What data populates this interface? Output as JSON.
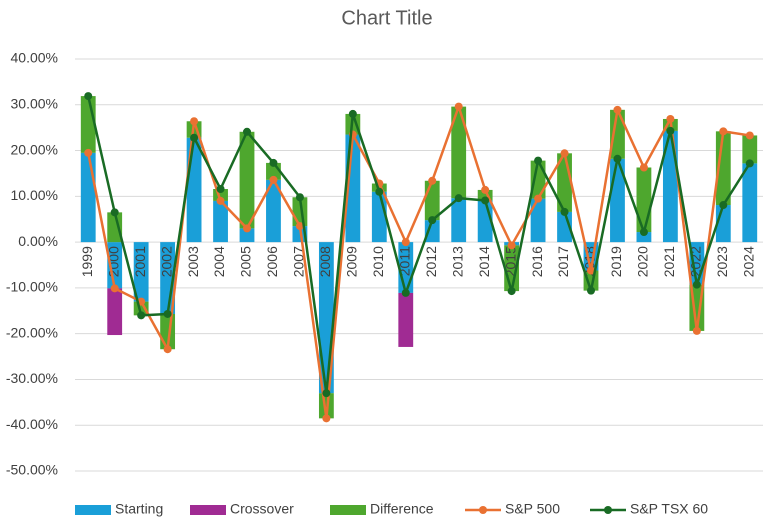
{
  "chart_data": {
    "type": "combo",
    "title": "Chart Title",
    "categories": [
      "1999",
      "2000",
      "2001",
      "2002",
      "2003",
      "2004",
      "2005",
      "2006",
      "2007",
      "2008",
      "2009",
      "2010",
      "2011",
      "2012",
      "2013",
      "2014",
      "2015",
      "2016",
      "2017",
      "2018",
      "2019",
      "2020",
      "2021",
      "2022",
      "2023",
      "2024"
    ],
    "series": [
      {
        "name": "Starting",
        "kind": "bar",
        "color": "#1a9fd8",
        "values": [
          19.5,
          -10.1,
          -13,
          -15.7,
          22.8,
          9.0,
          3.0,
          13.6,
          3.5,
          -33,
          23.5,
          11.0,
          -11.1,
          4.8,
          9.6,
          9.1,
          -0.7,
          9.5,
          6.6,
          -6.2,
          18.2,
          2.2,
          24.3,
          -9.3,
          8.1,
          17.2
        ]
      },
      {
        "name": "Crossover",
        "kind": "bar",
        "color": "#a02b93",
        "values": [
          null,
          -10.2,
          null,
          null,
          null,
          null,
          null,
          null,
          null,
          null,
          null,
          null,
          -11.8,
          null,
          null,
          null,
          null,
          null,
          null,
          null,
          null,
          null,
          null,
          null,
          null,
          null
        ]
      },
      {
        "name": "Difference",
        "kind": "bar",
        "color": "#4ea72e",
        "values": [
          12.4,
          6.5,
          -3,
          -7.7,
          3.6,
          2.6,
          21.1,
          3.7,
          6.3,
          -5.5,
          4.5,
          1.8,
          null,
          8.6,
          20.0,
          2.3,
          -10.0,
          8.3,
          12.8,
          -4.4,
          10.7,
          14.1,
          2.6,
          -10.1,
          16.1,
          6.1
        ]
      },
      {
        "name": "S&P 500",
        "kind": "line",
        "color": "#e97132",
        "values": [
          19.5,
          -10.1,
          -13,
          -23.4,
          26.4,
          9.0,
          3.0,
          13.6,
          3.5,
          -38.5,
          23.5,
          12.8,
          0,
          13.4,
          29.6,
          11.4,
          -0.7,
          9.5,
          19.4,
          -6.2,
          28.9,
          16.3,
          26.9,
          -19.4,
          24.2,
          23.3
        ]
      },
      {
        "name": "S&P TSX 60",
        "kind": "line",
        "color": "#196b24",
        "values": [
          31.9,
          6.5,
          -16,
          -15.7,
          22.8,
          11.6,
          24.1,
          17.3,
          9.8,
          -33,
          28.0,
          11.0,
          -11.1,
          4.8,
          9.6,
          9.1,
          -10.7,
          17.8,
          6.6,
          -10.6,
          18.2,
          2.2,
          24.3,
          -9.3,
          8.1,
          17.2
        ]
      }
    ],
    "ylim": [
      -50,
      40
    ],
    "yticks": [
      {
        "value": -50,
        "label": "-50.00%"
      },
      {
        "value": -40,
        "label": "-40.00%"
      },
      {
        "value": -30,
        "label": "-30.00%"
      },
      {
        "value": -20,
        "label": "-20.00%"
      },
      {
        "value": -10,
        "label": "-10.00%"
      },
      {
        "value": 0,
        "label": "0.00%"
      },
      {
        "value": 10,
        "label": "10.00%"
      },
      {
        "value": 20,
        "label": "20.00%"
      },
      {
        "value": 30,
        "label": "30.00%"
      },
      {
        "value": 40,
        "label": "40.00%"
      }
    ],
    "grid": true,
    "legend": "bottom"
  }
}
